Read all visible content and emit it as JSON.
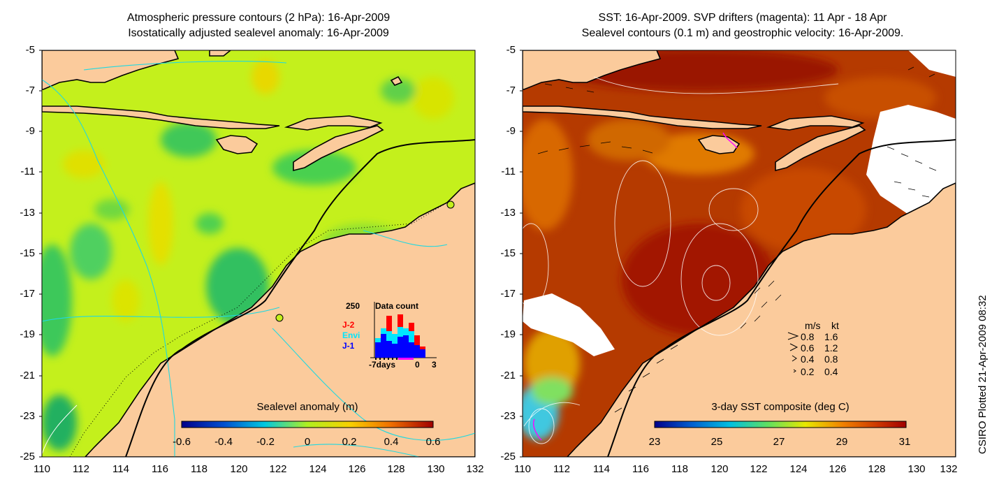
{
  "left_panel": {
    "title_line1": "Atmospheric pressure contours (2 hPa): 16-Apr-2009",
    "title_line2": "Isostatically adjusted sealevel anomaly: 16-Apr-2009",
    "colorbar_label": "Sealevel anomaly (m)",
    "colorbar_ticks": [
      "-0.6",
      "-0.4",
      "-0.2",
      "0",
      "0.2",
      "0.4",
      "0.6"
    ],
    "inset": {
      "ymax_label": "250",
      "title": "Data count",
      "x_label_left": "-7days",
      "x_label_mid": "0",
      "x_label_right": "3",
      "satellites": [
        {
          "name": "J-2",
          "color": "#ff0000"
        },
        {
          "name": "Envi",
          "color": "#00e5ff"
        },
        {
          "name": "J-1",
          "color": "#0000ff"
        }
      ]
    }
  },
  "right_panel": {
    "title_line1": "SST: 16-Apr-2009. SVP drifters (magenta): 11 Apr - 18 Apr",
    "title_line2": "Sealevel contours (0.1 m) and geostrophic velocity: 16-Apr-2009.",
    "colorbar_label": "3-day SST composite (deg C)",
    "colorbar_ticks": [
      "23",
      "25",
      "27",
      "29",
      "31"
    ],
    "velocity_legend": {
      "header_ms": "m/s",
      "header_kt": "kt",
      "rows": [
        {
          "ms": "0.8",
          "kt": "1.6"
        },
        {
          "ms": "0.6",
          "kt": "1.2"
        },
        {
          "ms": "0.4",
          "kt": "0.8"
        },
        {
          "ms": "0.2",
          "kt": "0.4"
        }
      ]
    }
  },
  "axes": {
    "lat_ticks": [
      "-5",
      "-7",
      "-9",
      "-11",
      "-13",
      "-15",
      "-17",
      "-19",
      "-21",
      "-23",
      "-25"
    ],
    "lon_ticks": [
      "110",
      "112",
      "114",
      "116",
      "118",
      "120",
      "122",
      "124",
      "126",
      "128",
      "130",
      "132"
    ]
  },
  "credit": "CSIRO Plotted 21-Apr-2009 08:32",
  "colors": {
    "land": "#fbcb9c",
    "sla_base": "#c4f01c",
    "sst_base": "#b53a00",
    "coast": "#000000"
  }
}
